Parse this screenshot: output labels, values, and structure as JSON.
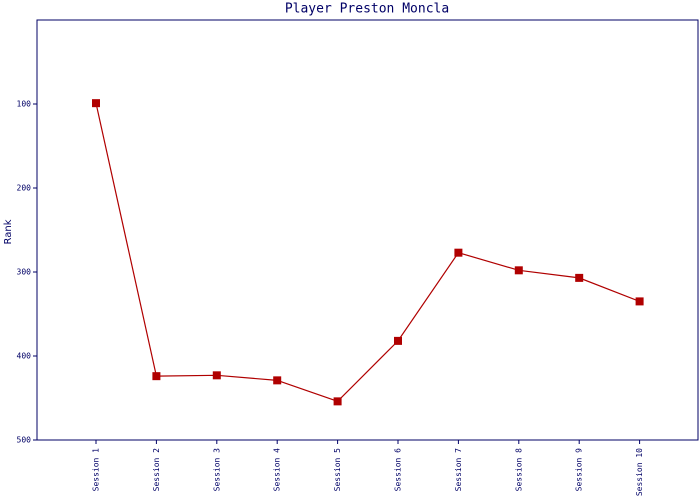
{
  "chart_data": {
    "type": "line",
    "title": "Player Preston Moncla",
    "y_label": "Rank",
    "categories": [
      "Session 1",
      "Session 2",
      "Session 3",
      "Session 4",
      "Session 5",
      "Session 6",
      "Session 7",
      "Session 8",
      "Session 9",
      "Session 10"
    ],
    "series": [
      {
        "name": "Rank",
        "color": "#b00000",
        "values": [
          99,
          424,
          423,
          429,
          454,
          382,
          277,
          298,
          307,
          335
        ]
      }
    ],
    "ylim": [
      500,
      0
    ],
    "yticks": [
      100,
      200,
      300,
      400,
      500
    ],
    "grid": false
  }
}
